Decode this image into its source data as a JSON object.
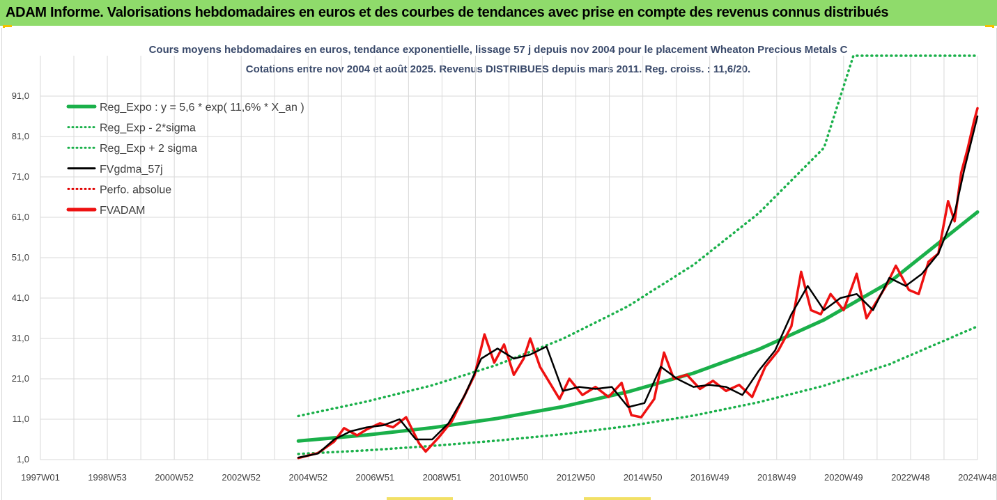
{
  "banner": {
    "title": "ADAM Informe. Valorisations hebdomadaires en euros et des courbes de tendances avec prise en compte des revenus connus distribués"
  },
  "colors": {
    "banner_bg": "#8fdb6b",
    "reg_expo": "#1ab04a",
    "sigma": "#1ab04a",
    "fvgdma": "#000000",
    "perfo": "#e00000",
    "fvadam": "#ee1111",
    "grid": "#d9d9d9"
  },
  "chart_data": {
    "type": "line",
    "title": "Cours moyens hebdomadaires en euros, tendance exponentielle, lissage 57 j depuis nov 2004  pour le placement Wheaton Precious Metals C",
    "subtitle": "Cotations entre nov 2004 et août 2025. Revenus DISTRIBUES depuis mars 2011. Reg. croiss. : 11,6/20.",
    "x_tick_labels": [
      "1997W01",
      "1998W53",
      "2000W52",
      "2002W52",
      "2004W52",
      "2006W51",
      "2008W51",
      "2010W50",
      "2012W50",
      "2014W50",
      "2016W49",
      "2018W49",
      "2020W49",
      "2022W48",
      "2024W48"
    ],
    "x_range": [
      1997.0,
      2025.7
    ],
    "y_tick_labels": [
      "1,0",
      "11,0",
      "21,0",
      "31,0",
      "41,0",
      "51,0",
      "61,0",
      "71,0",
      "81,0",
      "91,0"
    ],
    "y_range": [
      1.0,
      101.0
    ],
    "grid": true,
    "legend_position": "top-left",
    "legend": [
      {
        "name": "Reg_Expo : y = 5,6 * exp( 11,6% *  X_an )",
        "style": "solid-thick",
        "color": "#1ab04a"
      },
      {
        "name": "Reg_Exp - 2*sigma",
        "style": "dotted",
        "color": "#1ab04a"
      },
      {
        "name": "Reg_Exp + 2 sigma",
        "style": "dotted",
        "color": "#1ab04a"
      },
      {
        "name": "FVgdma_57j",
        "style": "solid",
        "color": "#000000"
      },
      {
        "name": "Perfo. absolue",
        "style": "dotted",
        "color": "#e00000"
      },
      {
        "name": "FVADAM",
        "style": "solid-thick",
        "color": "#ee1111"
      }
    ],
    "series": [
      {
        "name": "Reg_Expo : y = 5,6 * exp( 11,6% *  X_an )",
        "x": [
          2004.9,
          2007.0,
          2009.0,
          2011.0,
          2013.0,
          2015.0,
          2017.0,
          2019.0,
          2021.0,
          2023.0,
          2025.7
        ],
        "values": [
          5.6,
          7.1,
          8.9,
          11.2,
          14.1,
          17.8,
          22.4,
          28.3,
          35.6,
          44.9,
          62.3
        ]
      },
      {
        "name": "Reg_Exp - 2*sigma",
        "x": [
          2004.9,
          2007.0,
          2009.0,
          2011.0,
          2013.0,
          2015.0,
          2017.0,
          2019.0,
          2021.0,
          2023.0,
          2025.7
        ],
        "values": [
          2.4,
          3.3,
          4.4,
          5.7,
          7.3,
          9.3,
          11.9,
          15.2,
          19.3,
          24.6,
          34.0
        ]
      },
      {
        "name": "Reg_Exp + 2 sigma",
        "x": [
          2004.9,
          2007.0,
          2009.0,
          2011.0,
          2013.0,
          2015.0,
          2017.0,
          2019.0,
          2021.0,
          2021.9,
          2025.7
        ],
        "values": [
          11.8,
          15.4,
          19.4,
          24.5,
          30.9,
          39.0,
          49.2,
          62.0,
          78.2,
          101.0,
          101.0
        ]
      },
      {
        "name": "FVgdma_57j",
        "x": [
          2004.9,
          2005.5,
          2006.0,
          2006.5,
          2007.0,
          2007.5,
          2008.0,
          2008.5,
          2009.0,
          2009.5,
          2010.0,
          2010.5,
          2011.0,
          2011.5,
          2012.0,
          2012.5,
          2013.0,
          2013.5,
          2014.0,
          2014.5,
          2015.0,
          2015.5,
          2016.0,
          2016.5,
          2017.0,
          2017.5,
          2018.0,
          2018.5,
          2019.0,
          2019.5,
          2020.0,
          2020.5,
          2021.0,
          2021.5,
          2022.0,
          2022.5,
          2023.0,
          2023.5,
          2024.0,
          2024.5,
          2025.0,
          2025.3,
          2025.7
        ],
        "values": [
          1.5,
          2.5,
          6.0,
          8.0,
          9.0,
          9.5,
          11.0,
          6.0,
          6.0,
          10.0,
          17.0,
          26.0,
          28.5,
          26.0,
          27.0,
          29.0,
          18.0,
          19.0,
          18.5,
          19.0,
          14.0,
          15.0,
          24.0,
          21.0,
          19.0,
          19.5,
          19.0,
          17.0,
          23.0,
          28.0,
          37.0,
          44.0,
          38.0,
          41.0,
          42.0,
          38.0,
          46.0,
          44.0,
          47.0,
          52.0,
          62.0,
          73.0,
          86.0
        ]
      },
      {
        "name": "FVADAM",
        "x": [
          2004.9,
          2005.5,
          2006.0,
          2006.3,
          2006.7,
          2007.0,
          2007.4,
          2007.8,
          2008.2,
          2008.6,
          2008.8,
          2009.2,
          2009.6,
          2010.0,
          2010.3,
          2010.6,
          2010.9,
          2011.2,
          2011.5,
          2011.8,
          2012.0,
          2012.3,
          2012.6,
          2012.9,
          2013.2,
          2013.6,
          2014.0,
          2014.4,
          2014.8,
          2015.1,
          2015.4,
          2015.8,
          2016.1,
          2016.4,
          2016.8,
          2017.2,
          2017.6,
          2018.0,
          2018.4,
          2018.8,
          2019.2,
          2019.6,
          2020.0,
          2020.3,
          2020.6,
          2020.9,
          2021.2,
          2021.6,
          2022.0,
          2022.3,
          2022.6,
          2022.9,
          2023.2,
          2023.6,
          2023.9,
          2024.2,
          2024.5,
          2024.8,
          2025.0,
          2025.2,
          2025.4,
          2025.6,
          2025.7
        ],
        "values": [
          1.4,
          2.6,
          5.5,
          8.8,
          7.0,
          8.5,
          10.0,
          9.0,
          11.5,
          5.0,
          3.0,
          6.5,
          10.5,
          17.0,
          22.0,
          32.0,
          25.0,
          29.5,
          22.0,
          26.0,
          31.0,
          24.0,
          20.0,
          16.0,
          21.0,
          17.0,
          19.0,
          16.5,
          20.0,
          12.0,
          11.5,
          16.0,
          27.5,
          21.0,
          22.0,
          18.5,
          20.5,
          18.0,
          19.5,
          16.5,
          24.0,
          28.0,
          34.0,
          47.5,
          38.0,
          37.0,
          42.0,
          38.0,
          47.0,
          36.0,
          40.0,
          44.0,
          49.0,
          43.0,
          42.0,
          50.0,
          52.0,
          65.0,
          60.0,
          72.0,
          78.0,
          85.0,
          88.0
        ]
      }
    ]
  }
}
